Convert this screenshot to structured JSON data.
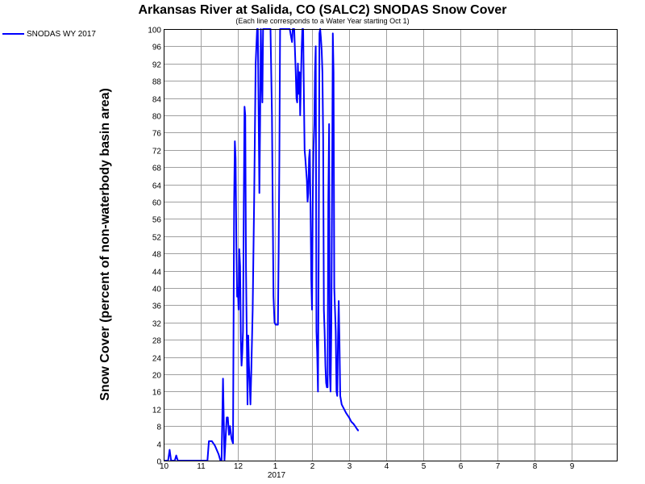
{
  "chart_data": {
    "type": "line",
    "title": "Arkansas River at Salida, CO (SALC2) SNODAS Snow Cover",
    "subtitle": "(Each line corresponds to a Water Year starting Oct 1)",
    "ylabel": "Snow Cover (percent of non-waterbody basin area)",
    "xlabel": "",
    "ylim": [
      0,
      100
    ],
    "y_ticks": [
      0,
      4,
      8,
      12,
      16,
      20,
      24,
      28,
      32,
      36,
      40,
      44,
      48,
      52,
      56,
      60,
      64,
      68,
      72,
      76,
      80,
      84,
      88,
      92,
      96,
      100
    ],
    "x_ticks": [
      {
        "label": "10",
        "month_offset": 0
      },
      {
        "label": "11",
        "month_offset": 1
      },
      {
        "label": "12",
        "month_offset": 2
      },
      {
        "label": "1",
        "month_offset": 3
      },
      {
        "label": "2",
        "month_offset": 4
      },
      {
        "label": "3",
        "month_offset": 5
      },
      {
        "label": "4",
        "month_offset": 6
      },
      {
        "label": "5",
        "month_offset": 7
      },
      {
        "label": "6",
        "month_offset": 8
      },
      {
        "label": "7",
        "month_offset": 9
      },
      {
        "label": "8",
        "month_offset": 10
      },
      {
        "label": "9",
        "month_offset": 11
      }
    ],
    "x_year_label": "2017",
    "grid": true,
    "legend_position": "top-left",
    "series": [
      {
        "name": "SNODAS WY 2017",
        "color": "#0000ff",
        "points": [
          [
            0.0,
            0
          ],
          [
            0.12,
            0
          ],
          [
            0.16,
            2.5
          ],
          [
            0.2,
            0
          ],
          [
            0.3,
            0
          ],
          [
            0.34,
            1.2
          ],
          [
            0.38,
            0
          ],
          [
            0.6,
            0
          ],
          [
            1.0,
            0
          ],
          [
            1.18,
            0
          ],
          [
            1.22,
            4.5
          ],
          [
            1.3,
            4.5
          ],
          [
            1.38,
            3.5
          ],
          [
            1.48,
            1.5
          ],
          [
            1.53,
            0
          ],
          [
            1.56,
            0
          ],
          [
            1.6,
            19
          ],
          [
            1.62,
            10
          ],
          [
            1.64,
            0
          ],
          [
            1.7,
            10
          ],
          [
            1.73,
            10
          ],
          [
            1.76,
            6
          ],
          [
            1.79,
            8
          ],
          [
            1.83,
            5
          ],
          [
            1.87,
            4
          ],
          [
            1.9,
            60
          ],
          [
            1.92,
            74
          ],
          [
            1.94,
            70
          ],
          [
            1.96,
            50
          ],
          [
            1.98,
            38
          ],
          [
            2.0,
            40
          ],
          [
            2.02,
            35
          ],
          [
            2.04,
            49
          ],
          [
            2.06,
            45
          ],
          [
            2.08,
            28
          ],
          [
            2.1,
            22
          ],
          [
            2.12,
            25
          ],
          [
            2.14,
            30
          ],
          [
            2.16,
            60
          ],
          [
            2.18,
            82
          ],
          [
            2.2,
            80
          ],
          [
            2.22,
            45
          ],
          [
            2.24,
            30
          ],
          [
            2.26,
            13
          ],
          [
            2.28,
            29
          ],
          [
            2.3,
            22
          ],
          [
            2.32,
            18
          ],
          [
            2.34,
            13
          ],
          [
            2.36,
            20
          ],
          [
            2.4,
            35
          ],
          [
            2.44,
            60
          ],
          [
            2.48,
            92
          ],
          [
            2.52,
            100
          ],
          [
            2.54,
            100
          ],
          [
            2.56,
            80
          ],
          [
            2.58,
            62
          ],
          [
            2.6,
            78
          ],
          [
            2.62,
            100
          ],
          [
            2.64,
            90
          ],
          [
            2.66,
            83
          ],
          [
            2.68,
            100
          ],
          [
            2.72,
            100
          ],
          [
            2.8,
            100
          ],
          [
            2.88,
            100
          ],
          [
            2.92,
            80
          ],
          [
            2.94,
            60
          ],
          [
            2.96,
            38
          ],
          [
            2.99,
            32
          ],
          [
            3.02,
            31.5
          ],
          [
            3.08,
            31.5
          ],
          [
            3.1,
            48
          ],
          [
            3.12,
            70
          ],
          [
            3.14,
            100
          ],
          [
            3.2,
            100
          ],
          [
            3.3,
            100
          ],
          [
            3.4,
            100
          ],
          [
            3.44,
            98
          ],
          [
            3.46,
            97
          ],
          [
            3.48,
            100
          ],
          [
            3.52,
            100
          ],
          [
            3.56,
            90
          ],
          [
            3.58,
            84
          ],
          [
            3.6,
            83
          ],
          [
            3.62,
            92
          ],
          [
            3.64,
            85
          ],
          [
            3.66,
            90
          ],
          [
            3.68,
            80
          ],
          [
            3.7,
            88
          ],
          [
            3.72,
            95
          ],
          [
            3.74,
            100
          ],
          [
            3.76,
            100
          ],
          [
            3.78,
            85
          ],
          [
            3.8,
            72
          ],
          [
            3.82,
            70
          ],
          [
            3.86,
            65
          ],
          [
            3.88,
            60
          ],
          [
            3.9,
            62
          ],
          [
            3.92,
            70
          ],
          [
            3.94,
            72
          ],
          [
            3.96,
            58
          ],
          [
            3.98,
            42
          ],
          [
            4.0,
            35
          ],
          [
            4.02,
            60
          ],
          [
            4.04,
            72
          ],
          [
            4.06,
            78
          ],
          [
            4.08,
            90
          ],
          [
            4.1,
            96
          ],
          [
            4.12,
            30
          ],
          [
            4.14,
            25
          ],
          [
            4.16,
            16
          ],
          [
            4.18,
            50
          ],
          [
            4.2,
            99
          ],
          [
            4.22,
            100
          ],
          [
            4.24,
            98
          ],
          [
            4.26,
            95
          ],
          [
            4.28,
            90
          ],
          [
            4.3,
            75
          ],
          [
            4.32,
            35
          ],
          [
            4.34,
            30
          ],
          [
            4.36,
            22
          ],
          [
            4.38,
            18
          ],
          [
            4.4,
            17
          ],
          [
            4.42,
            17
          ],
          [
            4.44,
            60
          ],
          [
            4.46,
            78
          ],
          [
            4.48,
            20
          ],
          [
            4.5,
            16
          ],
          [
            4.52,
            30
          ],
          [
            4.54,
            60
          ],
          [
            4.56,
            99
          ],
          [
            4.58,
            90
          ],
          [
            4.6,
            40
          ],
          [
            4.62,
            35
          ],
          [
            4.64,
            30
          ],
          [
            4.66,
            16
          ],
          [
            4.68,
            15
          ],
          [
            4.7,
            28
          ],
          [
            4.72,
            37
          ],
          [
            4.74,
            28
          ],
          [
            4.76,
            15
          ],
          [
            4.8,
            13
          ],
          [
            4.86,
            12
          ],
          [
            4.92,
            11
          ],
          [
            5.0,
            10
          ],
          [
            5.06,
            9
          ],
          [
            5.12,
            8.5
          ],
          [
            5.16,
            8
          ],
          [
            5.2,
            7.5
          ],
          [
            5.24,
            7
          ],
          [
            5.26,
            7
          ]
        ]
      }
    ]
  }
}
